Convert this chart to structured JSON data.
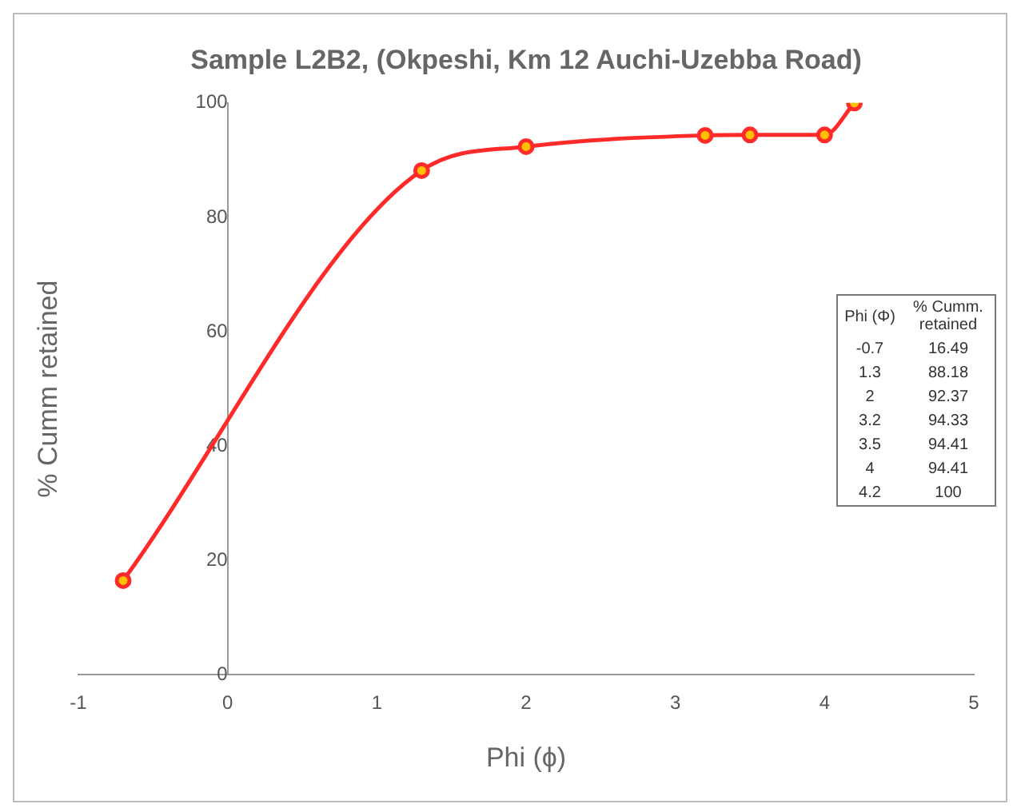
{
  "chart_data": [
    {
      "type": "line",
      "title": "Sample L2B2, (Okpeshi, Km 12 Auchi-Uzebba Road)",
      "xlabel": "Phi (ϕ)",
      "ylabel": "% Cumm retained",
      "x": [
        -0.7,
        1.3,
        2,
        3.2,
        3.5,
        4,
        4.2
      ],
      "series": [
        {
          "color": "#ff2a2a",
          "values": [
            16.49,
            88.18,
            92.37,
            94.33,
            94.41,
            94.41,
            100
          ]
        }
      ],
      "xlim": [
        -1,
        5
      ],
      "xticks": [
        -1,
        0,
        1,
        2,
        3,
        4,
        5
      ],
      "ylim": [
        0,
        100
      ],
      "yticks": [
        0,
        20,
        40,
        60,
        80,
        100
      ],
      "grid": false,
      "legend": false,
      "marker": "circle",
      "line_style": "solid"
    },
    {
      "type": "other",
      "xlabel": "Phi (Φ)",
      "ylabel": "% Cumm. retained",
      "categories": [
        "-0.7",
        "1.3",
        "2",
        "3.2",
        "3.5",
        "4",
        "4.2"
      ],
      "values": [
        16.49,
        88.18,
        92.37,
        94.33,
        94.41,
        94.41,
        100
      ],
      "data_labels": true
    }
  ]
}
